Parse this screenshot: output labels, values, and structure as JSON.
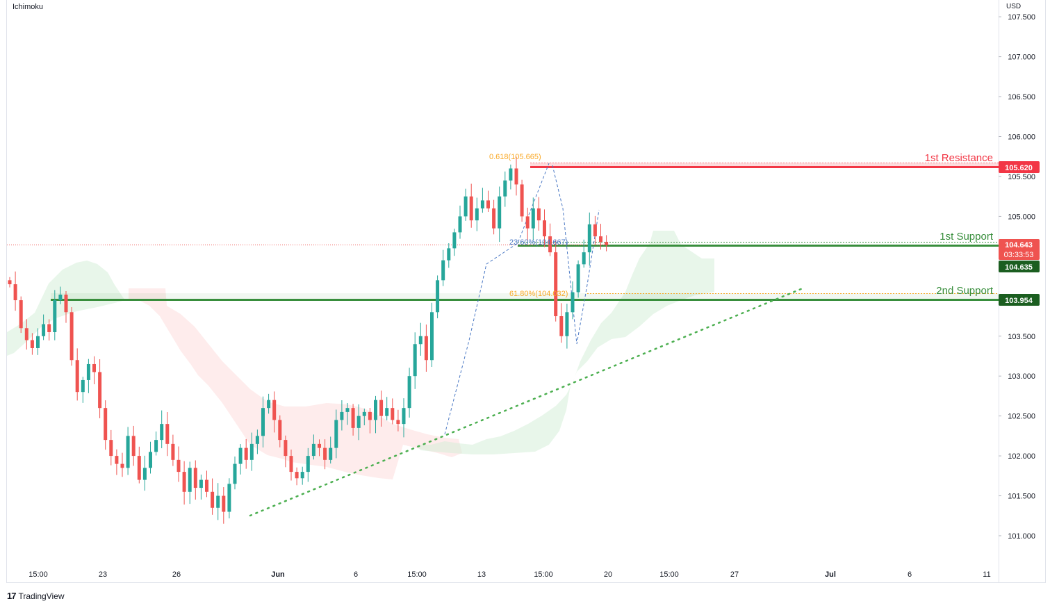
{
  "indicator_label": "Ichimoku",
  "currency": "USD",
  "brand": {
    "logo": "17",
    "name": "TradingView"
  },
  "colors": {
    "bull": "#26a69a",
    "bear": "#ef5350",
    "resistance": "#f23645",
    "support": "#388e3c",
    "fib": "#f9a825",
    "fib_blue": "#4a78c4",
    "cloud_bull": "#d6efd9",
    "cloud_bear": "#fde0df",
    "trend_dots": "#4caf50"
  },
  "chart_data": {
    "type": "candlestick",
    "symbol_unit": "USD",
    "ylim": [
      100.7,
      107.65
    ],
    "y_ticks": [
      {
        "value": 101.0,
        "label": "101.000"
      },
      {
        "value": 101.5,
        "label": "101.500"
      },
      {
        "value": 102.0,
        "label": "102.000"
      },
      {
        "value": 102.5,
        "label": "102.500"
      },
      {
        "value": 103.0,
        "label": "103.000"
      },
      {
        "value": 103.5,
        "label": "103.500"
      },
      {
        "value": 104.0,
        "label": "104.000"
      },
      {
        "value": 104.5,
        "label": "104.500"
      },
      {
        "value": 105.0,
        "label": "105.000"
      },
      {
        "value": 105.5,
        "label": "105.500"
      },
      {
        "value": 106.0,
        "label": "106.000"
      },
      {
        "value": 106.5,
        "label": "106.500"
      },
      {
        "value": 107.0,
        "label": "107.000"
      },
      {
        "value": 107.5,
        "label": "107.500"
      }
    ],
    "x_ticks": [
      "15:00",
      "23",
      "26",
      "Jun",
      "6",
      "15:00",
      "13",
      "15:00",
      "20",
      "15:00",
      "27",
      "Jul",
      "6",
      "11"
    ],
    "x_tick_bold": [
      false,
      false,
      false,
      true,
      false,
      false,
      false,
      false,
      false,
      false,
      false,
      true,
      false,
      false
    ],
    "levels": [
      {
        "name": "1st Resistance",
        "value": 105.62,
        "label": "105.620",
        "kind": "resistance"
      },
      {
        "name": "1st Support",
        "value": 104.635,
        "label": "104.635",
        "kind": "support"
      },
      {
        "name": "2nd Support",
        "value": 103.954,
        "label": "103.954",
        "kind": "support"
      }
    ],
    "fib_labels": [
      {
        "text": "0.618(105.665)",
        "value": 105.665
      },
      {
        "text": "23.60%(104.667)",
        "value": 104.667
      },
      {
        "text": "61.80%(104.032)",
        "value": 104.032
      }
    ],
    "price_tag": {
      "price": "104.643",
      "countdown": "03:33:53",
      "value": 104.643
    },
    "trendline": {
      "start": 101.22,
      "end": 104.12
    },
    "closes": [
      104.15,
      103.95,
      103.6,
      103.45,
      103.35,
      103.5,
      103.65,
      103.55,
      103.95,
      104.02,
      103.8,
      103.2,
      102.8,
      102.95,
      103.15,
      103.05,
      102.6,
      102.2,
      102.0,
      101.9,
      101.85,
      102.25,
      102.0,
      101.7,
      101.85,
      102.05,
      102.2,
      102.4,
      102.15,
      101.95,
      101.8,
      101.55,
      101.85,
      101.6,
      101.7,
      101.55,
      101.35,
      101.5,
      101.3,
      101.65,
      101.9,
      102.1,
      101.95,
      102.15,
      102.25,
      102.6,
      102.7,
      102.45,
      102.2,
      102.0,
      101.8,
      101.72,
      101.8,
      102.0,
      102.15,
      102.1,
      101.95,
      102.1,
      102.45,
      102.55,
      102.6,
      102.35,
      102.5,
      102.55,
      102.45,
      102.7,
      102.5,
      102.6,
      102.45,
      102.4,
      102.6,
      103.0,
      103.4,
      103.5,
      103.2,
      103.8,
      104.2,
      104.45,
      104.6,
      104.8,
      105.0,
      105.25,
      104.95,
      105.1,
      105.2,
      105.1,
      104.85,
      105.25,
      105.45,
      105.6,
      105.4,
      105.0,
      104.85,
      105.1,
      104.95,
      104.75,
      104.55,
      103.75,
      103.5,
      103.8,
      104.05,
      104.4,
      104.55,
      104.9,
      104.75,
      104.68,
      104.643
    ]
  }
}
